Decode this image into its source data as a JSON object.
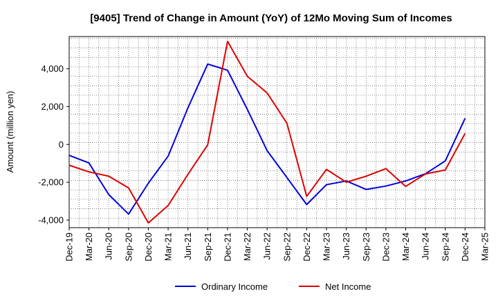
{
  "chart_data": {
    "type": "line",
    "title": "[9405]  Trend of Change in Amount (YoY) of 12Mo Moving Sum of Incomes",
    "xlabel": "",
    "ylabel": "Amount (million yen)",
    "ylim": [
      -4400,
      5700
    ],
    "yticks": [
      -4000,
      -2000,
      0,
      2000,
      4000
    ],
    "ytick_labels": [
      "-4,000",
      "-2,000",
      "0",
      "2,000",
      "4,000"
    ],
    "categories": [
      "Dec-19",
      "Mar-20",
      "Jun-20",
      "Sep-20",
      "Dec-20",
      "Mar-21",
      "Jun-21",
      "Sep-21",
      "Dec-21",
      "Mar-22",
      "Jun-22",
      "Sep-22",
      "Dec-22",
      "Mar-23",
      "Jun-23",
      "Sep-23",
      "Dec-23",
      "Mar-24",
      "Jun-24",
      "Sep-24",
      "Dec-24",
      "Mar-25"
    ],
    "grid": true,
    "legend_position": "bottom-center",
    "series": [
      {
        "name": "Ordinary Income",
        "color": "#0000dd",
        "values": [
          -580,
          -980,
          -2650,
          -3680,
          -2050,
          -620,
          1930,
          4250,
          3920,
          1850,
          -330,
          -1750,
          -3180,
          -2130,
          -1930,
          -2380,
          -2200,
          -1930,
          -1550,
          -870,
          1380,
          null
        ]
      },
      {
        "name": "Net Income",
        "color": "#dd0000",
        "values": [
          -1100,
          -1450,
          -1680,
          -2300,
          -4150,
          -3230,
          -1580,
          -20,
          5450,
          3600,
          2720,
          1120,
          -2750,
          -1320,
          -2000,
          -1680,
          -1280,
          -2220,
          -1560,
          -1350,
          580,
          null
        ]
      }
    ]
  }
}
